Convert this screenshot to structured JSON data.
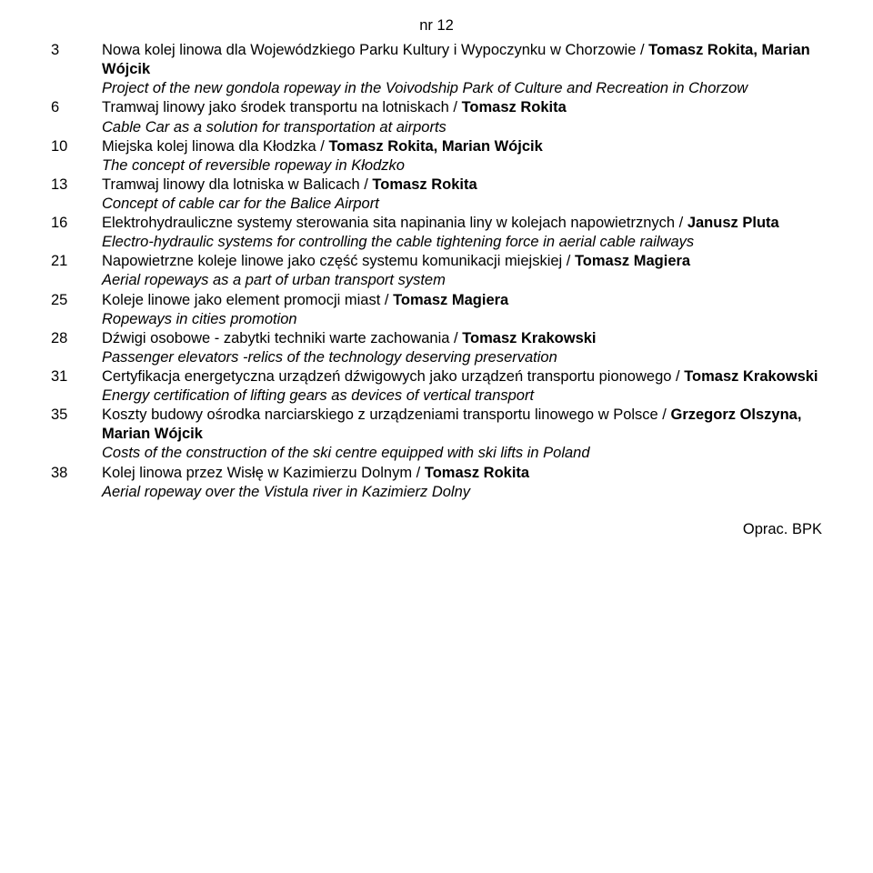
{
  "issue": "nr 12",
  "entries": [
    {
      "num": "3",
      "title_plain_1": "Nowa kolej linowa dla Wojewódzkiego Parku Kultury i Wypoczynku w Chorzowie / ",
      "title_bold_1": "Tomasz Rokita, Marian Wójcik",
      "subtitle": "Project of the new gondola ropeway in the Voivodship Park of Culture and Recreation in Chorzow"
    },
    {
      "num": "6",
      "title_plain_1": "Tramwaj linowy jako środek transportu na lotniskach / ",
      "title_bold_1": "Tomasz Rokita",
      "subtitle": "Cable Car as a solution for transportation at airports"
    },
    {
      "num": "10",
      "title_plain_1": "Miejska kolej linowa dla Kłodzka / ",
      "title_bold_1": "Tomasz Rokita, Marian Wójcik",
      "subtitle": "The concept of reversible ropeway in Kłodzko"
    },
    {
      "num": "13",
      "title_plain_1": "Tramwaj linowy dla lotniska w Balicach / ",
      "title_bold_1": "Tomasz Rokita",
      "subtitle": "Concept of cable car for the Balice Airport"
    },
    {
      "num": "16",
      "title_plain_1": "Elektrohydrauliczne systemy sterowania sita napinania liny w kolejach napowietrznych / ",
      "title_bold_1": "Janusz Pluta",
      "subtitle": "Electro-hydraulic systems for controlling the cable tightening force in aerial cable railways"
    },
    {
      "num": "21",
      "title_plain_1": "Napowietrzne koleje linowe jako część systemu komunikacji miejskiej / ",
      "title_bold_1": "Tomasz Magiera",
      "subtitle": "Aerial ropeways as a part of urban transport system"
    },
    {
      "num": "25",
      "title_plain_1": "Koleje linowe jako element promocji miast / ",
      "title_bold_1": "Tomasz Magiera",
      "subtitle": "Ropeways in cities promotion"
    },
    {
      "num": "28",
      "title_plain_1": "Dźwigi osobowe - zabytki techniki warte zachowania / ",
      "title_bold_1": "Tomasz Krakowski",
      "subtitle": "Passenger elevators -relics of the technology deserving preservation"
    },
    {
      "num": "31",
      "title_plain_1": "Certyfikacja energetyczna urządzeń dźwigowych jako urządzeń transportu pionowego / ",
      "title_bold_1": "Tomasz Krakowski",
      "subtitle": "Energy certification of lifting gears as devices of vertical transport"
    },
    {
      "num": "35",
      "title_plain_1": "Koszty budowy ośrodka narciarskiego z urządzeniami transportu linowego w Polsce / ",
      "title_bold_1": "Grzegorz Olszyna, Marian Wójcik",
      "subtitle": "Costs of the construction of the ski centre equipped with ski lifts in Poland"
    },
    {
      "num": "38",
      "title_plain_1": "Kolej linowa przez Wisłę w Kazimierzu Dolnym / ",
      "title_bold_1": "Tomasz Rokita",
      "subtitle": "Aerial ropeway over the Vistula river in Kazimierz Dolny"
    }
  ],
  "footer": "Oprac. BPK"
}
